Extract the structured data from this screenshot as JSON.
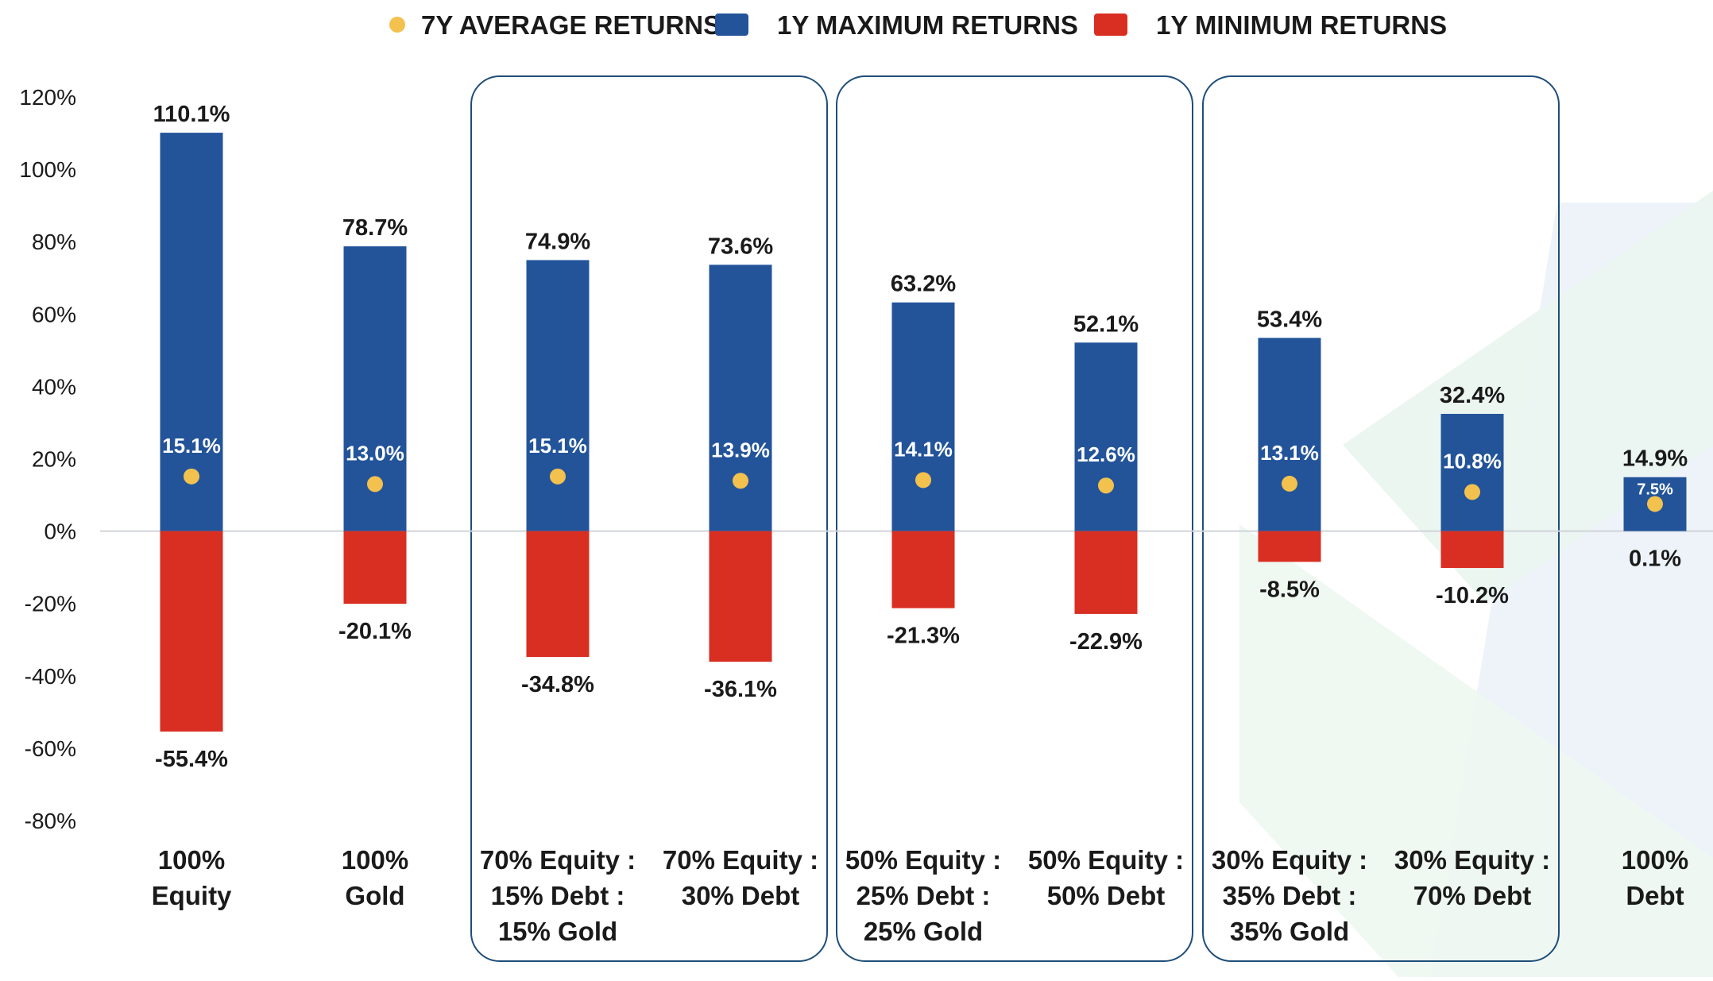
{
  "chart_data": {
    "type": "bar",
    "legend": {
      "position": "top",
      "entries": [
        {
          "label": "7Y AVERAGE RETURNS",
          "color": "#F2C14E",
          "marker": "dot"
        },
        {
          "label": "1Y MAXIMUM RETURNS",
          "color": "#23549A",
          "marker": "square"
        },
        {
          "label": "1Y MINIMUM RETURNS",
          "color": "#D92E22",
          "marker": "square"
        }
      ]
    },
    "y_axis": {
      "ylim": [
        -80,
        120
      ],
      "ticks": [
        120,
        100,
        80,
        60,
        40,
        20,
        0,
        -20,
        -40,
        -60,
        -80
      ],
      "tick_labels": [
        "120%",
        "100%",
        "80%",
        "60%",
        "40%",
        "20%",
        "0%",
        "-20%",
        "-40%",
        "-60%",
        "-80%"
      ]
    },
    "categories": [
      [
        "100%",
        "Equity"
      ],
      [
        "100%",
        "Gold"
      ],
      [
        "70% Equity :",
        "15% Debt :",
        "15% Gold"
      ],
      [
        "70% Equity :",
        "30% Debt"
      ],
      [
        "50% Equity :",
        "25% Debt :",
        "25% Gold"
      ],
      [
        "50% Equity :",
        "50% Debt"
      ],
      [
        "30% Equity :",
        "35% Debt :",
        "35% Gold"
      ],
      [
        "30% Equity :",
        "70% Debt"
      ],
      [
        "100%",
        "Debt"
      ]
    ],
    "series": [
      {
        "name": "1Y MAXIMUM RETURNS",
        "color": "#23549A",
        "values": [
          110.1,
          78.7,
          74.9,
          73.6,
          63.2,
          52.1,
          53.4,
          32.4,
          14.9
        ],
        "labels": [
          "110.1%",
          "78.7%",
          "74.9%",
          "73.6%",
          "63.2%",
          "52.1%",
          "53.4%",
          "32.4%",
          "14.9%"
        ]
      },
      {
        "name": "1Y MINIMUM RETURNS",
        "color": "#D92E22",
        "values": [
          -55.4,
          -20.1,
          -34.8,
          -36.1,
          -21.3,
          -22.9,
          -8.5,
          -10.2,
          0.1
        ],
        "labels": [
          "-55.4%",
          "-20.1%",
          "-34.8%",
          "-36.1%",
          "-21.3%",
          "-22.9%",
          "-8.5%",
          "-10.2%",
          "0.1%"
        ]
      },
      {
        "name": "7Y AVERAGE RETURNS",
        "color": "#F2C14E",
        "values": [
          15.1,
          13.0,
          15.1,
          13.9,
          14.1,
          12.6,
          13.1,
          10.8,
          7.5
        ],
        "labels": [
          "15.1%",
          "13.0%",
          "15.1%",
          "13.9%",
          "14.1%",
          "12.6%",
          "13.1%",
          "10.8%",
          "7.5%"
        ]
      }
    ],
    "groups": [
      [
        2,
        3
      ],
      [
        4,
        5
      ],
      [
        6,
        7
      ]
    ],
    "grid": false
  }
}
